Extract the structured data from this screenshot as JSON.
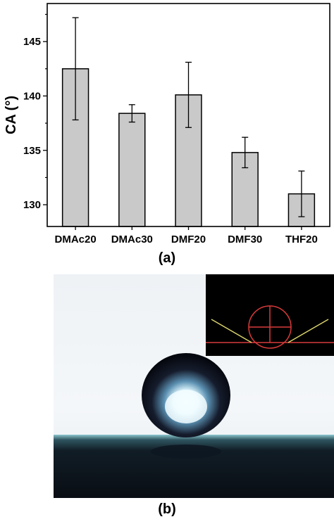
{
  "chart_data": {
    "type": "bar",
    "categories": [
      "DMAc20",
      "DMAc30",
      "DMF20",
      "DMF30",
      "THF20"
    ],
    "values": [
      142.5,
      138.4,
      140.1,
      134.8,
      131.0
    ],
    "error": [
      4.7,
      0.8,
      3.0,
      1.4,
      2.1
    ],
    "ylabel": "CA (°)",
    "ylim": [
      128,
      148.5
    ],
    "yticks": [
      130,
      135,
      140,
      145
    ],
    "bar_color": "#c9c9c9",
    "grid": false
  },
  "panels": {
    "a_label": "(a)",
    "b_label": "(b)"
  },
  "photo": {
    "background_top": "#f3f6f8",
    "surface_color": "#0d1a22",
    "droplet_color": "#0c0f1a",
    "highlight_color": "#e8fbff",
    "inset_background": "#000000",
    "inset_line_red": "#d83a3a",
    "inset_line_yellow": "#d9d36a"
  }
}
